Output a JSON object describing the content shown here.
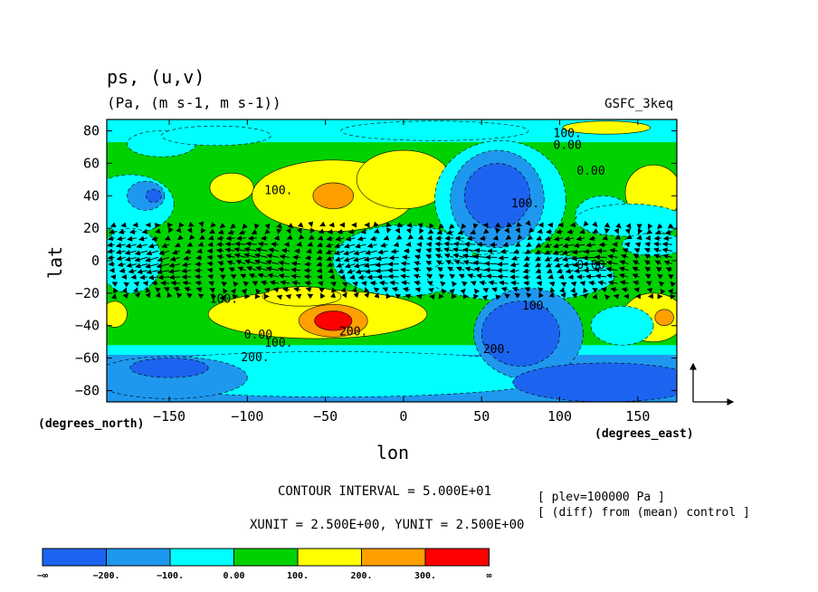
{
  "chart_data": {
    "type": "heatmap",
    "title": "ps, (u,v)",
    "subtitle": "(Pa, (m s-1, m s-1))",
    "experiment": "GSFC_3keq",
    "xlabel": "lon",
    "ylabel": "lat",
    "x_unit_label": "(degrees_east)",
    "y_unit_label": "(degrees_north)",
    "xlim": [
      -190,
      175
    ],
    "ylim": [
      -87,
      87
    ],
    "x_ticks": [
      -150,
      -100,
      -50,
      0,
      50,
      100,
      150
    ],
    "y_ticks": [
      80,
      60,
      40,
      20,
      0,
      -20,
      -40,
      -60,
      -80
    ],
    "x_tick_labels": [
      "−150",
      "−100",
      "−50",
      "0",
      "50",
      "100",
      "150"
    ],
    "y_tick_labels": [
      "80",
      "60",
      "40",
      "20",
      "0",
      "−20",
      "−40",
      "−60",
      "−80"
    ],
    "contour_interval_text": "CONTOUR INTERVAL = 5.000E+01",
    "vector_units_text": "XUNIT = 2.500E+00, YUNIT = 2.500E+00",
    "notes": [
      "[ plev=100000 Pa ]",
      "[ (diff) from (mean) control ]"
    ],
    "legend": {
      "placement": "bottom",
      "bins": [
        {
          "range": [
            "-inf",
            -200
          ],
          "color": "#1c64f0"
        },
        {
          "range": [
            -200,
            -100
          ],
          "color": "#1e98ee"
        },
        {
          "range": [
            -100,
            0
          ],
          "color": "#00ffff"
        },
        {
          "range": [
            0,
            100
          ],
          "color": "#00d200"
        },
        {
          "range": [
            100,
            200
          ],
          "color": "#ffff00"
        },
        {
          "range": [
            200,
            300
          ],
          "color": "#ffa000"
        },
        {
          "range": [
            300,
            "inf"
          ],
          "color": "#ff0000"
        }
      ],
      "labels": [
        "−∞",
        "−200.",
        "−100.",
        "0.00",
        "100.",
        "200.",
        "300.",
        "∞"
      ]
    },
    "contour_labels": [
      {
        "text": "100.",
        "lon": 105,
        "lat": 76
      },
      {
        "text": "0.00",
        "lon": 105,
        "lat": 69
      },
      {
        "text": "0.00",
        "lon": 120,
        "lat": 53
      },
      {
        "text": "100.",
        "lon": -80,
        "lat": 41
      },
      {
        "text": "100.",
        "lon": 78,
        "lat": 33
      },
      {
        "text": "0.00",
        "lon": 120,
        "lat": -5
      },
      {
        "text": "100.",
        "lon": -115,
        "lat": -26
      },
      {
        "text": "100.",
        "lon": 85,
        "lat": -30
      },
      {
        "text": "200.",
        "lon": -32,
        "lat": -46
      },
      {
        "text": "0.00",
        "lon": -93,
        "lat": -48
      },
      {
        "text": "100.",
        "lon": -80,
        "lat": -53
      },
      {
        "text": "200.",
        "lon": -95,
        "lat": -62
      },
      {
        "text": "200.",
        "lon": 60,
        "lat": -57
      }
    ],
    "field_regions": [
      {
        "bin": 2,
        "lon": -175,
        "lat": 35,
        "rx": 28,
        "ry": 18
      },
      {
        "bin": 1,
        "lon": -165,
        "lat": 40,
        "rx": 12,
        "ry": 9
      },
      {
        "bin": 0,
        "lon": -160,
        "lat": 40,
        "rx": 5,
        "ry": 4
      },
      {
        "bin": 2,
        "lon": -155,
        "lat": 72,
        "rx": 22,
        "ry": 8
      },
      {
        "bin": 2,
        "lon": -75,
        "lat": 31,
        "rx": 10,
        "ry": 8
      },
      {
        "bin": 4,
        "lon": -110,
        "lat": 45,
        "rx": 14,
        "ry": 9
      },
      {
        "bin": 2,
        "lon": -120,
        "lat": 77,
        "rx": 35,
        "ry": 6
      },
      {
        "bin": 4,
        "lon": -45,
        "lat": 40,
        "rx": 52,
        "ry": 22
      },
      {
        "bin": 4,
        "lon": 0,
        "lat": 50,
        "rx": 30,
        "ry": 18
      },
      {
        "bin": 5,
        "lon": -45,
        "lat": 40,
        "rx": 13,
        "ry": 8
      },
      {
        "bin": 2,
        "lon": 20,
        "lat": 80,
        "rx": 60,
        "ry": 6
      },
      {
        "bin": 2,
        "lon": 62,
        "lat": 38,
        "rx": 42,
        "ry": 36
      },
      {
        "bin": 1,
        "lon": 60,
        "lat": 38,
        "rx": 30,
        "ry": 30
      },
      {
        "bin": 0,
        "lon": 60,
        "lat": 40,
        "rx": 21,
        "ry": 20
      },
      {
        "bin": 4,
        "lon": 130,
        "lat": 82,
        "rx": 28,
        "ry": 4
      },
      {
        "bin": 2,
        "lon": 128,
        "lat": 28,
        "rx": 18,
        "ry": 12
      },
      {
        "bin": 4,
        "lon": 160,
        "lat": 42,
        "rx": 18,
        "ry": 17
      },
      {
        "bin": 2,
        "lon": 145,
        "lat": 25,
        "rx": 35,
        "ry": 10
      },
      {
        "bin": 2,
        "lon": -175,
        "lat": 0,
        "rx": 20,
        "ry": 20
      },
      {
        "bin": 2,
        "lon": 0,
        "lat": 0,
        "rx": 45,
        "ry": 22
      },
      {
        "bin": 2,
        "lon": 75,
        "lat": -10,
        "rx": 60,
        "ry": 15
      },
      {
        "bin": 2,
        "lon": 160,
        "lat": 10,
        "rx": 20,
        "ry": 7
      },
      {
        "bin": 4,
        "lon": -185,
        "lat": -33,
        "rx": 8,
        "ry": 8
      },
      {
        "bin": 4,
        "lon": -55,
        "lat": -33,
        "rx": 70,
        "ry": 15
      },
      {
        "bin": 4,
        "lon": -65,
        "lat": -22,
        "rx": 25,
        "ry": 6
      },
      {
        "bin": 5,
        "lon": -45,
        "lat": -37,
        "rx": 22,
        "ry": 10
      },
      {
        "bin": 6,
        "lon": -45,
        "lat": -37,
        "rx": 12,
        "ry": 6
      },
      {
        "bin": 4,
        "lon": 160,
        "lat": -35,
        "rx": 20,
        "ry": 15
      },
      {
        "bin": 5,
        "lon": 167,
        "lat": -35,
        "rx": 6,
        "ry": 5
      },
      {
        "bin": 2,
        "lon": 95,
        "lat": -42,
        "rx": 18,
        "ry": 7
      },
      {
        "bin": 2,
        "lon": 140,
        "lat": -40,
        "rx": 20,
        "ry": 12
      },
      {
        "bin": 2,
        "lon": -45,
        "lat": -70,
        "rx": 150,
        "ry": 14
      },
      {
        "bin": 1,
        "lon": -150,
        "lat": -72,
        "rx": 50,
        "ry": 13
      },
      {
        "bin": 1,
        "lon": 80,
        "lat": -45,
        "rx": 35,
        "ry": 28
      },
      {
        "bin": 0,
        "lon": 75,
        "lat": -45,
        "rx": 25,
        "ry": 20
      },
      {
        "bin": 0,
        "lon": 130,
        "lat": -75,
        "rx": 60,
        "ry": 12
      },
      {
        "bin": 0,
        "lon": -150,
        "lat": -66,
        "rx": 25,
        "ry": 6
      }
    ]
  }
}
